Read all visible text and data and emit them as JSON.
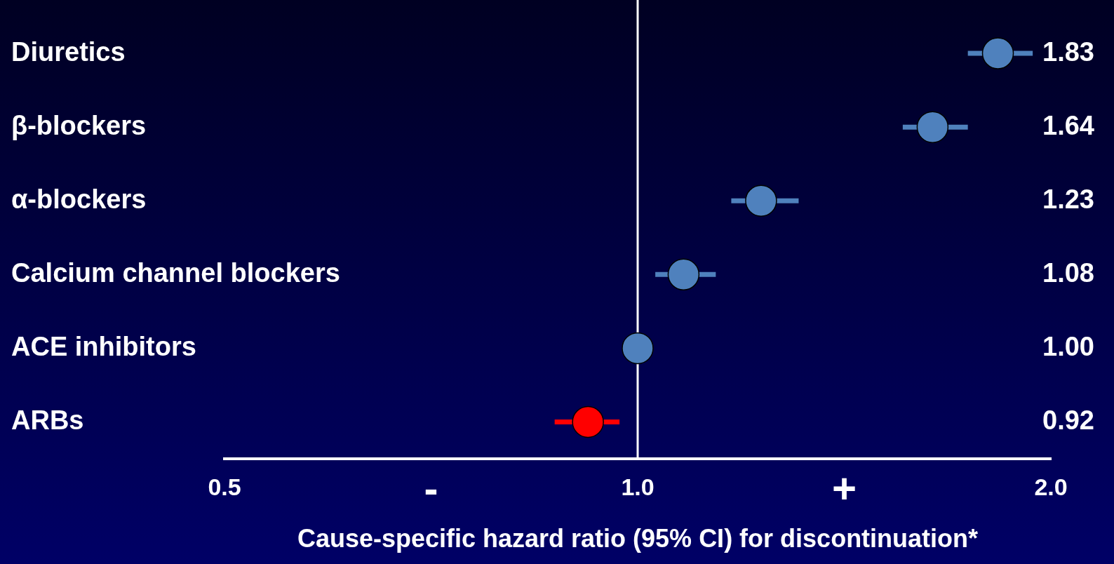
{
  "chart_data": {
    "type": "scatter",
    "orientation": "horizontal",
    "xlabel": "Cause-specific hazard ratio (95% CI) for discontinuation*",
    "categories": [
      "Diuretics",
      "β-blockers",
      "α-blockers",
      "Calcium channel blockers",
      "ACE inhibitors",
      "ARBs"
    ],
    "values": [
      1.83,
      1.64,
      1.23,
      1.08,
      1.0,
      0.92
    ],
    "errors": [
      [
        1.74,
        1.94
      ],
      [
        1.56,
        1.74
      ],
      [
        1.17,
        1.31
      ],
      [
        1.03,
        1.14
      ],
      null,
      [
        0.87,
        0.97
      ]
    ],
    "colors": [
      "#4f81bd",
      "#4f81bd",
      "#4f81bd",
      "#4f81bd",
      "#4f81bd",
      "#ff0000"
    ],
    "value_labels": [
      "1.83",
      "1.64",
      "1.23",
      "1.08",
      "1.00",
      "0.92"
    ],
    "log": "x",
    "xlim": [
      0.5,
      2.0
    ],
    "xticks": [
      0.5,
      {
        "value": 1,
        "label": "1.0"
      },
      {
        "value": 2,
        "label": "2.0"
      }
    ],
    "ref_lines": [
      {
        "axis": "x",
        "value": 1,
        "color": "#ffffff"
      }
    ],
    "annotations": [
      "-",
      "+"
    ],
    "grid": false,
    "legend": false,
    "marker": "circle"
  }
}
